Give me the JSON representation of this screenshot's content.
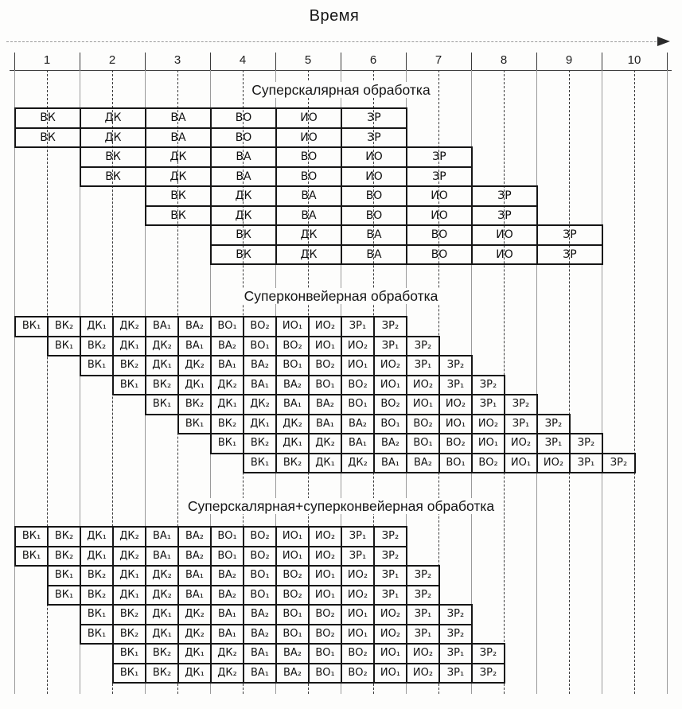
{
  "axis": {
    "title": "Время",
    "tick_labels": [
      "1",
      "2",
      "3",
      "4",
      "5",
      "6",
      "7",
      "8",
      "9",
      "10"
    ]
  },
  "sections": [
    {
      "id": "superscalar",
      "heading": "Суперскалярная обработка",
      "cell_duration_units": 1,
      "stages": [
        "ВК",
        "ДК",
        "ВА",
        "ВО",
        "ИО",
        "ЗР"
      ],
      "row_start_units": [
        0,
        0,
        1,
        1,
        2,
        2,
        3,
        3
      ]
    },
    {
      "id": "superpipelined",
      "heading": "Суперконвейерная обработка",
      "cell_duration_units": 0.5,
      "stages": [
        "ВК₁",
        "ВК₂",
        "ДК₁",
        "ДК₂",
        "ВА₁",
        "ВА₂",
        "ВО₁",
        "ВО₂",
        "ИО₁",
        "ИО₂",
        "ЗР₁",
        "ЗР₂"
      ],
      "row_start_units": [
        0,
        0.5,
        1,
        1.5,
        2,
        2.5,
        3,
        3.5
      ]
    },
    {
      "id": "superscalar-superpipelined",
      "heading": "Суперскалярная+суперконвейерная обработка",
      "cell_duration_units": 0.5,
      "stages": [
        "ВК₁",
        "ВК₂",
        "ДК₁",
        "ДК₂",
        "ВА₁",
        "ВА₂",
        "ВО₁",
        "ВО₂",
        "ИО₁",
        "ИО₂",
        "ЗР₁",
        "ЗР₂"
      ],
      "row_start_units": [
        0,
        0,
        0.5,
        0.5,
        1,
        1,
        1.5,
        1.5
      ]
    }
  ],
  "colors": {
    "cell_border": "#161616",
    "dashed_grid": "#3c3c3c",
    "solid_grid": "#9a9a9a",
    "text": "#161616"
  }
}
